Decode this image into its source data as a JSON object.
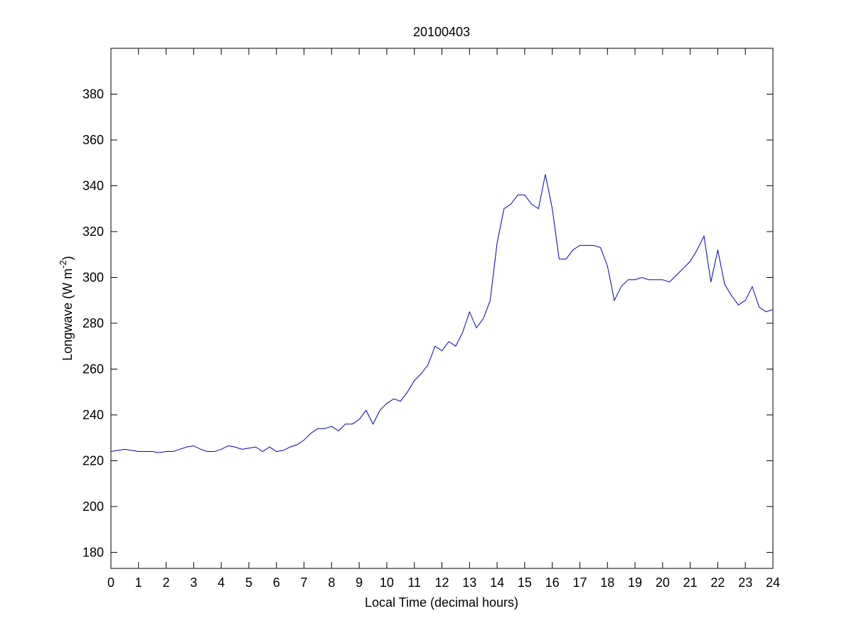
{
  "chart_data": {
    "type": "line",
    "title": "20100403",
    "xlabel": "Local Time (decimal hours)",
    "ylabel": {
      "text": "Longwave (W m",
      "superscript": "-2",
      "suffix": ")"
    },
    "color": "#0000c0",
    "x": [
      0,
      0.25,
      0.5,
      0.75,
      1,
      1.25,
      1.5,
      1.75,
      2,
      2.25,
      2.5,
      2.75,
      3,
      3.25,
      3.5,
      3.75,
      4,
      4.25,
      4.5,
      4.75,
      5,
      5.25,
      5.5,
      5.75,
      6,
      6.25,
      6.5,
      6.75,
      7,
      7.25,
      7.5,
      7.75,
      8,
      8.25,
      8.5,
      8.75,
      9,
      9.25,
      9.5,
      9.75,
      10,
      10.25,
      10.5,
      10.75,
      11,
      11.25,
      11.5,
      11.75,
      12,
      12.25,
      12.5,
      12.75,
      13,
      13.25,
      13.5,
      13.75,
      14,
      14.25,
      14.5,
      14.75,
      15,
      15.25,
      15.5,
      15.75,
      16,
      16.25,
      16.5,
      16.75,
      17,
      17.25,
      17.5,
      17.75,
      18,
      18.25,
      18.5,
      18.75,
      19,
      19.25,
      19.5,
      19.75,
      20,
      20.25,
      20.5,
      20.75,
      21,
      21.25,
      21.5,
      21.75,
      22,
      22.25,
      22.5,
      22.75,
      23,
      23.25,
      23.5,
      23.75,
      24
    ],
    "values": [
      224,
      224.5,
      225,
      224.5,
      224,
      224,
      224,
      223.5,
      224,
      224,
      225,
      226,
      226.5,
      225,
      224,
      224,
      225,
      226.5,
      226,
      225,
      225.5,
      226,
      224,
      226,
      224,
      224.5,
      226,
      227,
      229,
      232,
      234,
      234,
      235,
      233,
      236,
      236,
      238,
      242,
      236,
      242,
      245,
      247,
      246,
      250,
      255,
      258,
      262,
      270,
      268,
      272,
      270,
      276,
      285,
      278,
      282,
      290,
      315,
      330,
      332,
      336,
      336,
      332,
      330,
      345,
      330,
      308,
      308,
      312,
      314,
      314,
      314,
      313,
      305,
      290,
      296,
      299,
      299,
      300,
      299,
      299,
      299,
      298,
      301,
      304,
      307,
      312,
      318,
      298,
      312,
      297,
      292,
      288,
      290,
      296,
      287,
      285,
      286
    ],
    "xlim": [
      0,
      24
    ],
    "xticks": [
      0,
      1,
      2,
      3,
      4,
      5,
      6,
      7,
      8,
      9,
      10,
      11,
      12,
      13,
      14,
      15,
      16,
      17,
      18,
      19,
      20,
      21,
      22,
      23,
      24
    ],
    "ylim": [
      173,
      400
    ],
    "yticks": [
      180,
      200,
      220,
      240,
      260,
      280,
      300,
      320,
      340,
      360,
      380
    ]
  }
}
